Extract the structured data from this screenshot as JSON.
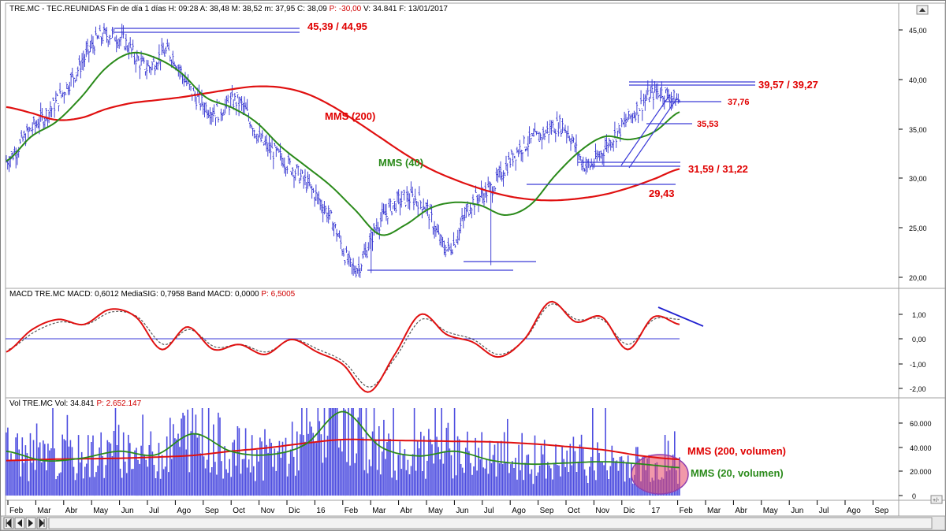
{
  "header": {
    "price": {
      "symbol": "TRE.MC",
      "name": "TEC.REUNIDAS",
      "period": "Fin de día 1 días",
      "time": "H: 09:28",
      "ohlc": "A: 38,48 M: 38,52 m: 37,95 C: 38,09",
      "pct": "P: -30,00",
      "volume": "V: 34.841",
      "date": "F: 13/01/2017"
    },
    "macd": {
      "text": "MACD  TRE.MC MACD: 0,6012 MediaSIG: 0,7958 Band  MACD: 0,0000",
      "pct": "P: 6,5005"
    },
    "vol": {
      "text": "Vol  TRE.MC Vol: 34.841",
      "pct": "P: 2.652.147"
    }
  },
  "chart_data": [
    {
      "type": "line",
      "panel": "price",
      "axis_ticks": [
        "45,00",
        "40,00",
        "35,00",
        "30,00",
        "25,00",
        "20,00"
      ],
      "ylim": [
        19.2,
        46.8
      ],
      "annotations": [
        {
          "text": "45,39 / 44,95",
          "value": [
            45.39,
            44.95
          ]
        },
        {
          "text": "39,57 / 39,27",
          "value": [
            39.57,
            39.27
          ]
        },
        {
          "text": "37,76",
          "value": 37.76
        },
        {
          "text": "35,53",
          "value": 35.53
        },
        {
          "text": "31,59 / 31,22",
          "value": [
            31.59,
            31.22
          ]
        },
        {
          "text": "29,43",
          "value": 29.43
        }
      ],
      "series": [
        {
          "name": "MMS (200)",
          "color": "#e01010",
          "values": [
            37.5,
            36.9,
            36.2,
            36.4,
            37.3,
            37.9,
            38.2,
            38.5,
            38.9,
            39.3,
            39.6,
            39.5,
            38.9,
            37.7,
            36.1,
            34.4,
            32.7,
            31.2,
            30.1,
            29.2,
            28.5,
            28.1,
            28.0,
            28.2,
            28.6,
            29.3,
            30.2,
            31.2
          ]
        },
        {
          "name": "MMS (40)",
          "color": "#2a8a1a",
          "values": [
            32.0,
            34.5,
            36.0,
            38.5,
            41.5,
            43.0,
            42.5,
            41.0,
            38.5,
            37.5,
            36.0,
            33.5,
            31.5,
            29.5,
            27.0,
            24.5,
            25.5,
            27.2,
            27.8,
            27.5,
            26.5,
            27.5,
            30.5,
            33.0,
            34.5,
            34.2,
            35.0,
            37.0
          ]
        },
        {
          "name": "Precio",
          "color": "#2a2ad0",
          "values": [
            32.0,
            35.0,
            37.5,
            41.0,
            44.5,
            44.3,
            41.5,
            43.0,
            39.0,
            37.0,
            38.0,
            34.0,
            32.0,
            29.5,
            26.0,
            21.0,
            25.5,
            28.0,
            27.5,
            23.0,
            27.5,
            29.5,
            33.0,
            34.5,
            35.5,
            31.5,
            34.0,
            36.8,
            39.0,
            38.1
          ]
        }
      ]
    },
    {
      "type": "line",
      "panel": "macd",
      "axis_ticks": [
        "1,00",
        "0,00",
        "-1,00",
        "-2,00"
      ],
      "ylim": [
        -2.3,
        1.6
      ],
      "series": [
        {
          "name": "MACD",
          "color": "#e01010",
          "values": [
            -0.5,
            0.4,
            0.8,
            0.6,
            1.2,
            0.9,
            -0.4,
            0.5,
            -0.4,
            -0.2,
            -0.6,
            0.0,
            -0.5,
            -1.0,
            -2.1,
            -0.6,
            1.0,
            0.2,
            -0.1,
            -0.7,
            0.0,
            1.5,
            0.7,
            0.9,
            -0.4,
            0.9,
            0.6
          ]
        },
        {
          "name": "MediaSIG",
          "color": "#555555",
          "values": [
            -0.4,
            0.3,
            0.7,
            0.6,
            1.1,
            0.9,
            -0.2,
            0.4,
            -0.3,
            -0.2,
            -0.5,
            0.0,
            -0.4,
            -0.9,
            -1.9,
            -0.7,
            0.8,
            0.3,
            0.0,
            -0.6,
            0.0,
            1.4,
            0.8,
            0.8,
            -0.2,
            0.8,
            0.8
          ]
        }
      ]
    },
    {
      "type": "bar",
      "panel": "volume",
      "axis_ticks": [
        "60.000",
        "40.000",
        "20.000",
        "0"
      ],
      "ylim": [
        -2000,
        75000
      ],
      "annotations": [
        {
          "text": "MMS (200, volumen)"
        },
        {
          "text": "MMS (20, volumen)"
        }
      ],
      "series": [
        {
          "name": "MMS (200, volumen)",
          "color": "#e01010",
          "values": [
            30000,
            31000,
            31500,
            32000,
            33000,
            34500,
            38000,
            41000,
            45000,
            48000,
            47500,
            47000,
            46500,
            46000,
            44500,
            42000,
            39000,
            34000,
            31000
          ]
        },
        {
          "name": "MMS (20, volumen)",
          "color": "#2a8a1a",
          "values": [
            38000,
            30000,
            32000,
            38000,
            35000,
            53000,
            38000,
            35000,
            44000,
            72000,
            42000,
            34000,
            38000,
            30000,
            27000,
            28000,
            29000,
            27000,
            24000
          ]
        }
      ]
    }
  ],
  "x_axis": [
    "Feb",
    "Mar",
    "Abr",
    "May",
    "Jun",
    "Jul",
    "Ago",
    "Sep",
    "Oct",
    "Nov",
    "Dic",
    "16",
    "Feb",
    "Mar",
    "Abr",
    "May",
    "Jun",
    "Jul",
    "Ago",
    "Sep",
    "Oct",
    "Nov",
    "Dic",
    "17",
    "Feb",
    "Mar",
    "Abr",
    "May",
    "Jun",
    "Jul",
    "Ago",
    "Sep"
  ]
}
